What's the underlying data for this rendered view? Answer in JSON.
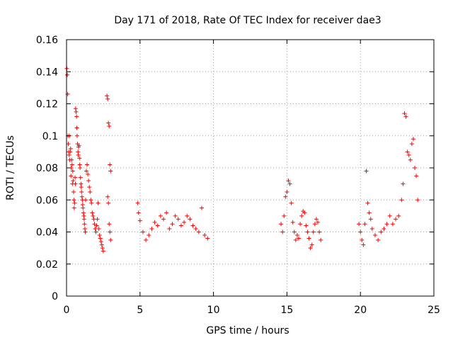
{
  "chart_data": {
    "type": "scatter",
    "title": "Day 171 of 2018, Rate Of TEC Index for receiver dae3",
    "xlabel": "GPS time / hours",
    "ylabel": "ROTI / TECUs",
    "xlim": [
      0,
      25
    ],
    "ylim": [
      0,
      0.16
    ],
    "xticks": [
      0,
      5,
      10,
      15,
      20,
      25
    ],
    "yticks": [
      0,
      0.02,
      0.04,
      0.06,
      0.08,
      0.1,
      0.12,
      0.14,
      0.16
    ],
    "xtick_labels": [
      "0",
      "5",
      "10",
      "15",
      "20",
      "25"
    ],
    "ytick_labels": [
      "0",
      "0.02",
      "0.04",
      "0.06",
      "0.08",
      "0.1",
      "0.12",
      "0.14",
      "0.16"
    ],
    "grid": true,
    "marker": "+",
    "color": "#ff0000",
    "series": [
      {
        "x": [
          0.02,
          0.05,
          0.08,
          0.1,
          0.12,
          0.15,
          0.18,
          0.2,
          0.22,
          0.25,
          0.28,
          0.3,
          0.32,
          0.35,
          0.38,
          0.4,
          0.42,
          0.45,
          0.48,
          0.5,
          0.52,
          0.55,
          0.58,
          0.6,
          0.62,
          0.65,
          0.68,
          0.7,
          0.72,
          0.75,
          0.78,
          0.8,
          0.82,
          0.85,
          0.88,
          0.9,
          0.92,
          0.95,
          0.98,
          1.0,
          1.02,
          1.05,
          1.08,
          1.1,
          1.12,
          1.15,
          1.18,
          1.2,
          1.22,
          1.25,
          1.28,
          1.3,
          1.35,
          1.4,
          1.45,
          1.5,
          1.55,
          1.6,
          1.65,
          1.7,
          1.75,
          1.8,
          1.85,
          1.9,
          1.95,
          2.0,
          2.05,
          2.1,
          2.15,
          2.2,
          2.25,
          2.3,
          2.35,
          2.4,
          2.45,
          2.5,
          2.75,
          2.8,
          2.85,
          2.9,
          2.95,
          3.0
        ],
        "y": [
          0.142,
          0.138,
          0.126,
          0.1,
          0.095,
          0.09,
          0.088,
          0.1,
          0.085,
          0.09,
          0.092,
          0.075,
          0.08,
          0.085,
          0.082,
          0.07,
          0.078,
          0.072,
          0.065,
          0.06,
          0.055,
          0.058,
          0.074,
          0.07,
          0.117,
          0.115,
          0.112,
          0.105,
          0.1,
          0.095,
          0.09,
          0.088,
          0.093,
          0.094,
          0.086,
          0.082,
          0.08,
          0.074,
          0.07,
          0.068,
          0.065,
          0.062,
          0.06,
          0.057,
          0.055,
          0.052,
          0.05,
          0.048,
          0.045,
          0.042,
          0.04,
          0.06,
          0.078,
          0.082,
          0.076,
          0.072,
          0.068,
          0.065,
          0.06,
          0.058,
          0.052,
          0.05,
          0.048,
          0.045,
          0.042,
          0.04,
          0.044,
          0.048,
          0.058,
          0.042,
          0.038,
          0.036,
          0.034,
          0.032,
          0.03,
          0.028,
          0.125,
          0.123,
          0.108,
          0.106,
          0.082,
          0.078
        ]
      },
      {
        "x": [
          2.8,
          2.85,
          2.9,
          2.95,
          3.0
        ],
        "y": [
          0.062,
          0.058,
          0.045,
          0.04,
          0.035
        ]
      },
      {
        "x": [
          4.85,
          4.9,
          5.0,
          5.2,
          5.4,
          5.6,
          5.8,
          6.0,
          6.2,
          6.4,
          6.6,
          6.8,
          7.0,
          7.2,
          7.4,
          7.6,
          7.8,
          8.0,
          8.2,
          8.4,
          8.6,
          8.8,
          9.0,
          9.2,
          9.4,
          9.6
        ],
        "y": [
          0.058,
          0.052,
          0.047,
          0.04,
          0.035,
          0.038,
          0.042,
          0.046,
          0.044,
          0.05,
          0.048,
          0.052,
          0.042,
          0.045,
          0.05,
          0.048,
          0.044,
          0.046,
          0.05,
          0.048,
          0.044,
          0.042,
          0.04,
          0.055,
          0.038,
          0.036
        ]
      },
      {
        "x": [
          14.6,
          14.7,
          14.8,
          14.9,
          15.0,
          15.1,
          15.2,
          15.3,
          15.4,
          15.5,
          15.6,
          15.7,
          15.8,
          15.9,
          16.0,
          16.1,
          16.2,
          16.3,
          16.4,
          16.5,
          16.6,
          16.7,
          16.8,
          16.9,
          17.0,
          17.1,
          17.2,
          17.3
        ],
        "y": [
          0.045,
          0.04,
          0.05,
          0.062,
          0.065,
          0.072,
          0.07,
          0.058,
          0.046,
          0.04,
          0.035,
          0.038,
          0.036,
          0.045,
          0.05,
          0.053,
          0.052,
          0.044,
          0.04,
          0.036,
          0.03,
          0.032,
          0.04,
          0.045,
          0.048,
          0.046,
          0.04,
          0.035
        ]
      },
      {
        "x": [
          19.9,
          20.0,
          20.1,
          20.2,
          20.3,
          20.4,
          20.5,
          20.6,
          20.7,
          20.8,
          21.0,
          21.2,
          21.4,
          21.6,
          21.8,
          22.0,
          22.2,
          22.4,
          22.6,
          22.8,
          22.9,
          23.0,
          23.1,
          23.2,
          23.3,
          23.4,
          23.5,
          23.6,
          23.7,
          23.8,
          23.9
        ],
        "y": [
          0.045,
          0.04,
          0.035,
          0.032,
          0.045,
          0.078,
          0.058,
          0.052,
          0.048,
          0.042,
          0.038,
          0.035,
          0.04,
          0.042,
          0.045,
          0.05,
          0.045,
          0.048,
          0.05,
          0.06,
          0.07,
          0.114,
          0.112,
          0.09,
          0.088,
          0.085,
          0.095,
          0.098,
          0.08,
          0.075,
          0.06
        ]
      }
    ]
  }
}
